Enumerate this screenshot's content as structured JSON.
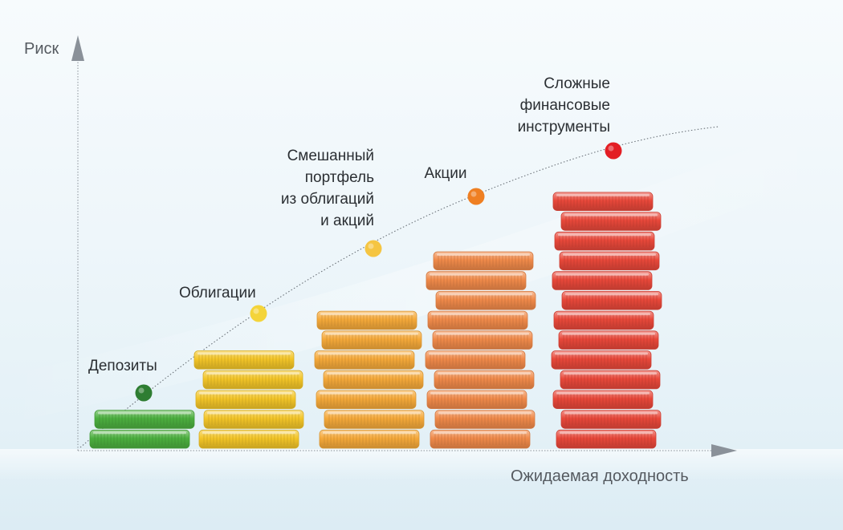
{
  "diagram": {
    "y_axis_label": "Риск",
    "x_axis_label": "Ожидаемая доходность",
    "categories": [
      {
        "key": "deposits",
        "label_lines": [
          "Депозиты"
        ],
        "coins": 2,
        "color": "#4caf3f",
        "dot_color": "#2e7d32"
      },
      {
        "key": "bonds",
        "label_lines": [
          "Облигации"
        ],
        "coins": 5,
        "color": "#f3c528",
        "dot_color": "#f4d43a"
      },
      {
        "key": "mixed",
        "label_lines": [
          "Смешанный",
          "портфель",
          "из облигаций",
          "и акций"
        ],
        "coins": 7,
        "color": "#f5a93a",
        "dot_color": "#f5c542"
      },
      {
        "key": "stocks",
        "label_lines": [
          "Акции"
        ],
        "coins": 10,
        "color": "#f08a4a",
        "dot_color": "#ef7f22"
      },
      {
        "key": "complex",
        "label_lines": [
          "Сложные",
          "финансовые",
          "инструменты"
        ],
        "coins": 13,
        "color": "#e8483a",
        "dot_color": "#e31e24"
      }
    ]
  }
}
